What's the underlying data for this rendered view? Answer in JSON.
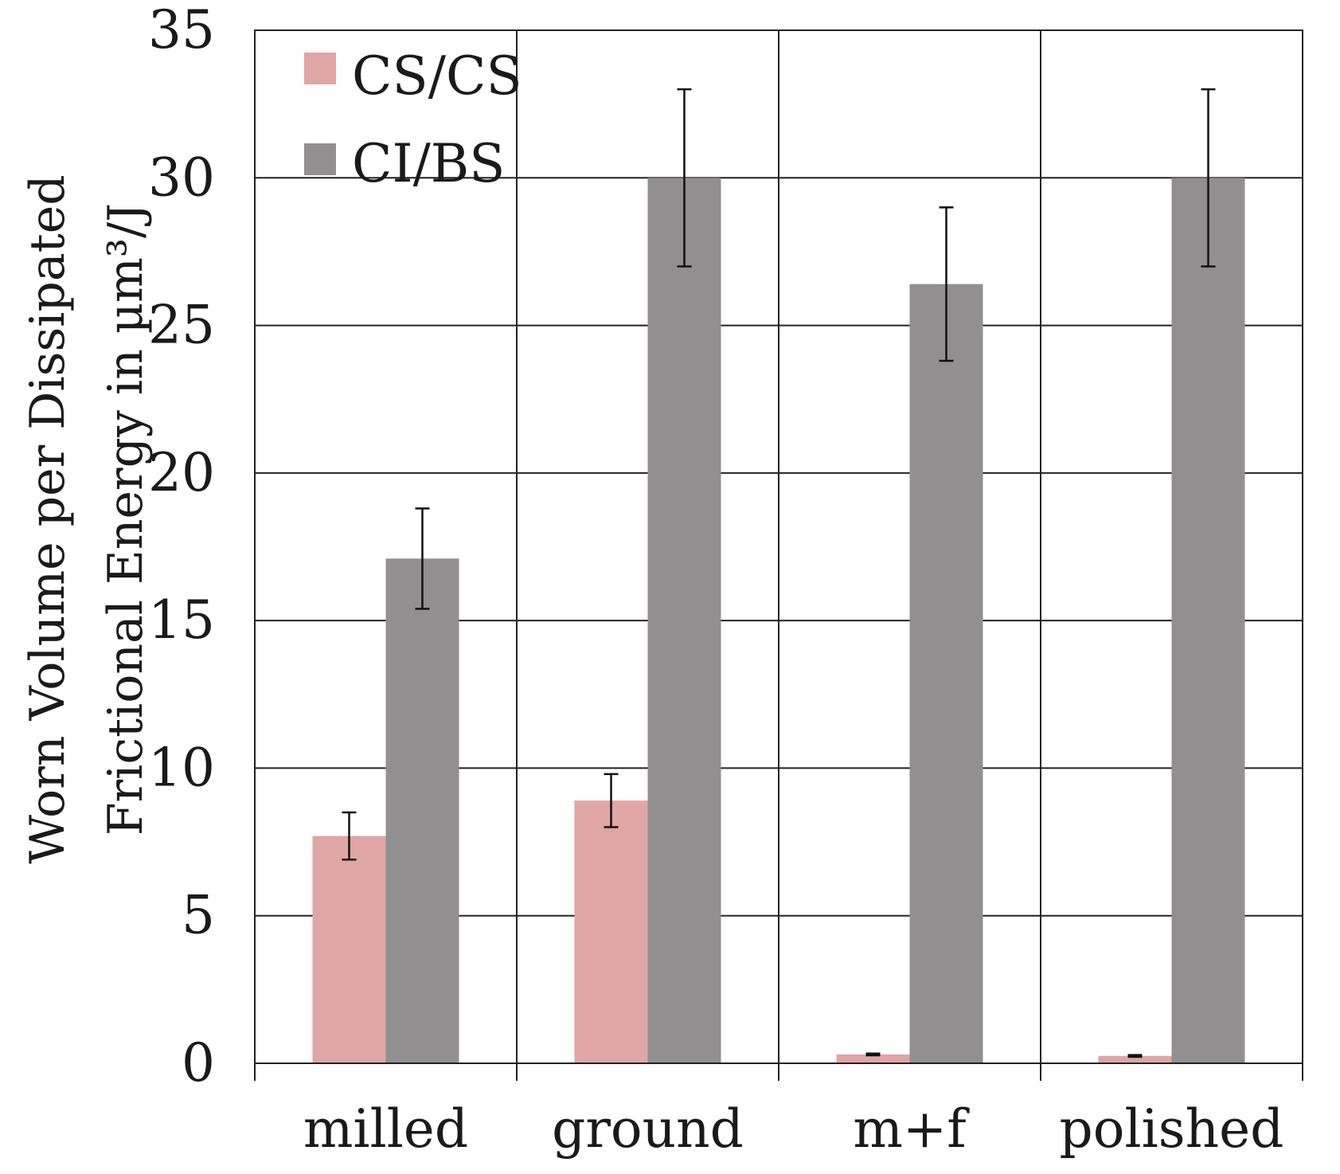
{
  "chart_data": {
    "type": "bar",
    "title": "",
    "xlabel": "",
    "ylabel_line1": "Worn Volume per Dissipated",
    "ylabel_line2": "Frictional Energy in µm³/J",
    "categories": [
      "milled",
      "ground",
      "m+f",
      "polished"
    ],
    "ylim": [
      0,
      35
    ],
    "yticks": [
      0,
      5,
      10,
      15,
      20,
      25,
      30,
      35
    ],
    "grid": true,
    "legend_position": "top-left",
    "series": [
      {
        "name": "CS/CS",
        "color": "#e0a5a5",
        "values": [
          7.7,
          8.9,
          0.3,
          0.25
        ],
        "error": [
          0.8,
          0.9,
          0.03,
          0.03
        ]
      },
      {
        "name": "CI/BS",
        "color": "#918f8f",
        "values": [
          17.1,
          30,
          26.4,
          30
        ],
        "error_low": [
          1.7,
          3.0,
          2.6,
          3.0
        ],
        "error_high": [
          1.7,
          3.0,
          2.6,
          3.0
        ]
      }
    ]
  }
}
